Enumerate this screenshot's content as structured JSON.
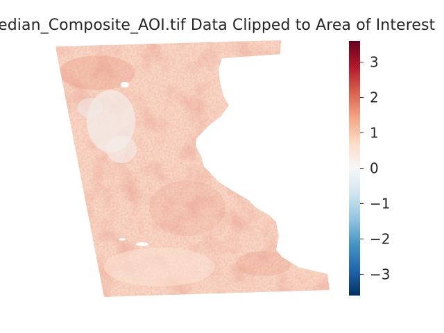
{
  "chart_data": {
    "type": "heatmap",
    "title": "Median_Composite_AOI.tif Data Clipped to Area of Interest",
    "colormap": "RdBu_r",
    "colorbar": {
      "vmin": -3.6,
      "vmax": 3.6,
      "ticks": [
        3,
        2,
        1,
        0,
        -1,
        -2,
        -3
      ],
      "tick_labels": [
        "3",
        "2",
        "1",
        "0",
        "−1",
        "−2",
        "−3"
      ],
      "colors": [
        "#053061",
        "#2166ac",
        "#4393c3",
        "#92c5de",
        "#d1e5f0",
        "#f7f7f7",
        "#fddbc7",
        "#f4a582",
        "#d6604d",
        "#b2182b",
        "#67001f"
      ]
    },
    "grid": false,
    "value_summary": {
      "typical_min": 0.0,
      "typical_max": 1.8,
      "dominant_value": 0.8
    }
  }
}
